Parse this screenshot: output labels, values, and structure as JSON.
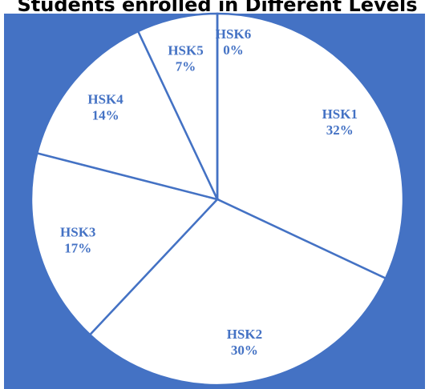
{
  "chart_data": {
    "type": "pie",
    "title": "Students enrolled in Different Levels",
    "categories": [
      "HSK1",
      "HSK2",
      "HSK3",
      "HSK4",
      "HSK5",
      "HSK6"
    ],
    "values": [
      32,
      30,
      17,
      14,
      7,
      0
    ],
    "value_labels": [
      "32%",
      "30%",
      "17%",
      "14%",
      "7%",
      "0%"
    ],
    "color": "#ffffff",
    "edge_color": "#4472c4",
    "background": "#4472c4"
  }
}
